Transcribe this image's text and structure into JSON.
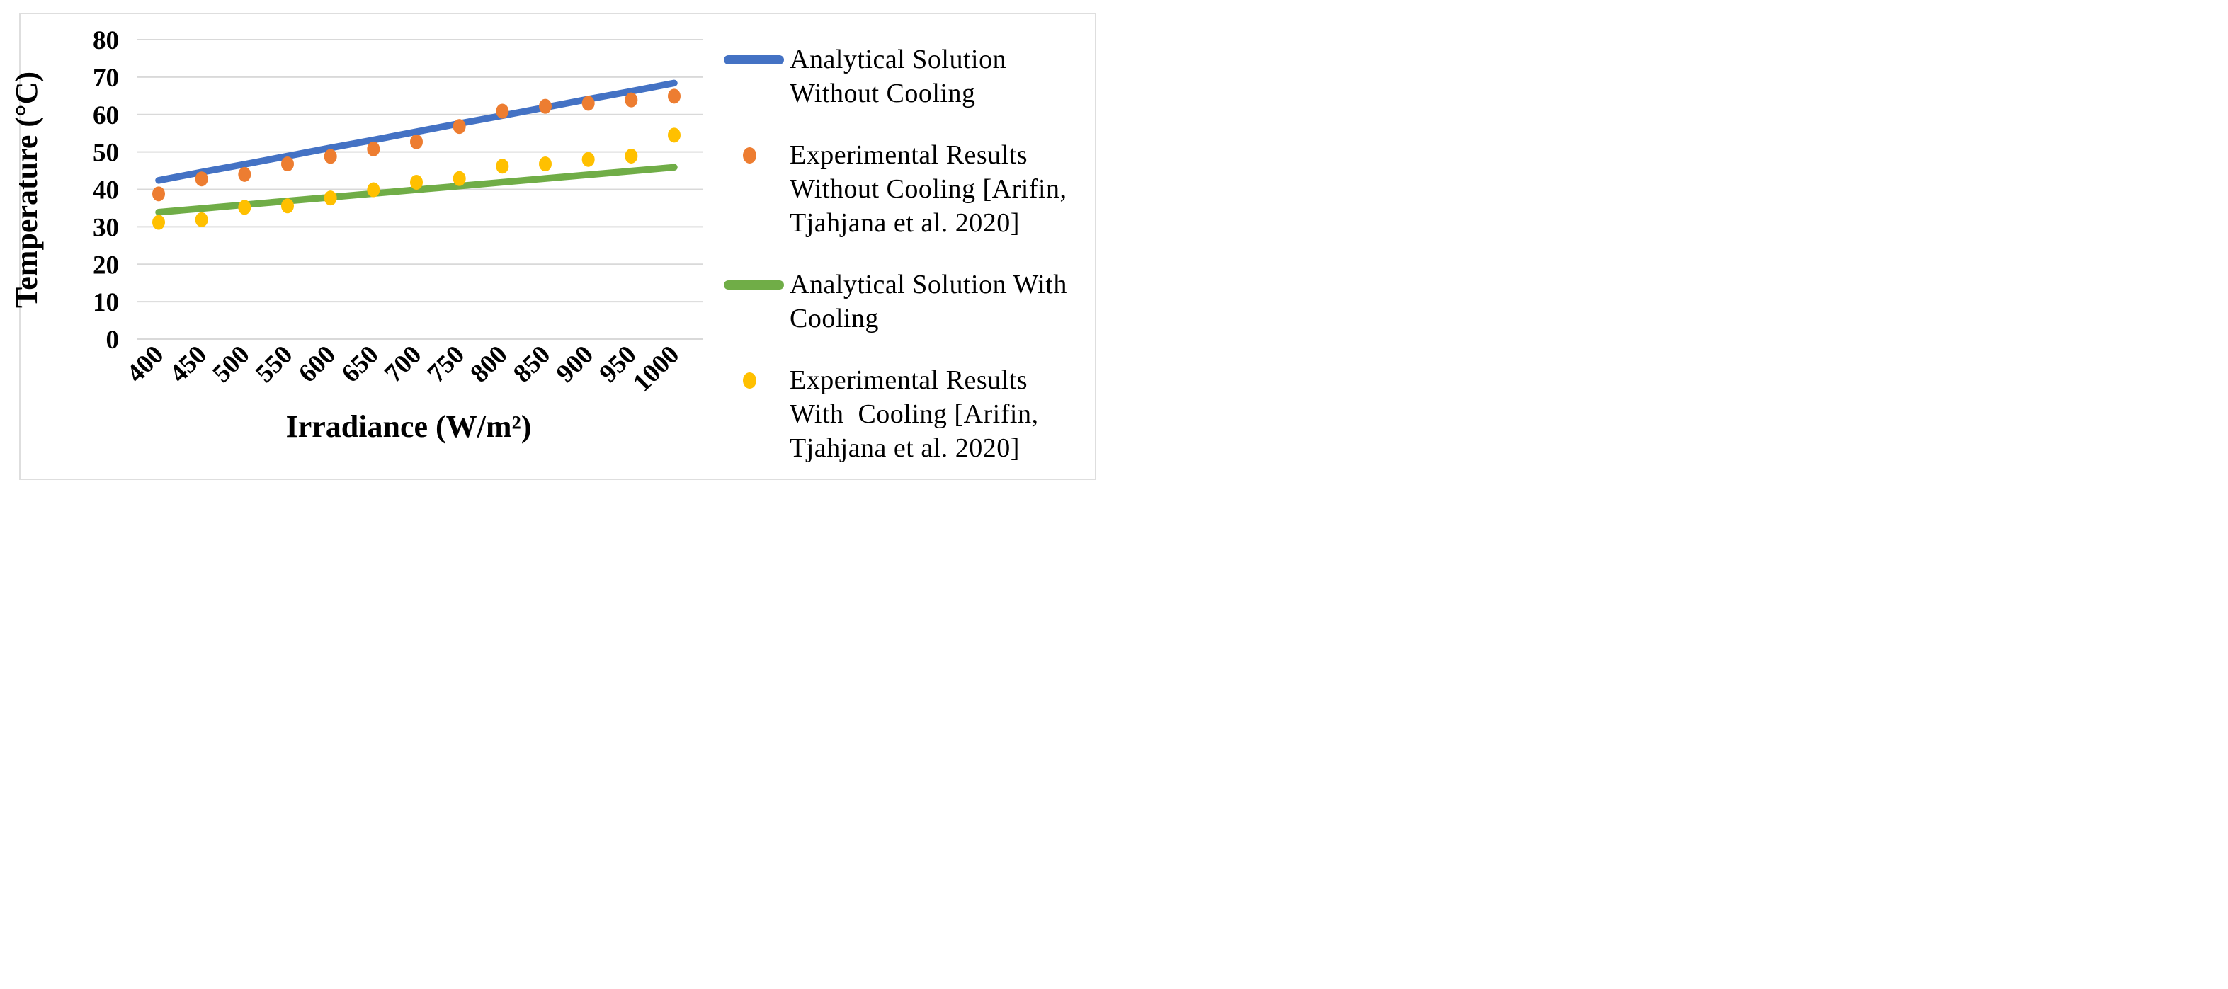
{
  "figure": {
    "background": "#ffffff",
    "border_color": "#dedede"
  },
  "chart_data": {
    "type": "line+scatter",
    "title": "",
    "xlabel": "Irradiance (W/m²)",
    "ylabel": "Temperature (°C)",
    "x": [
      400,
      450,
      500,
      550,
      600,
      650,
      700,
      750,
      800,
      850,
      900,
      950,
      1000
    ],
    "xtick_labels": [
      "400",
      "450",
      "500",
      "550",
      "600",
      "650",
      "700",
      "750",
      "800",
      "850",
      "900",
      "950",
      "1000"
    ],
    "yticks": [
      0,
      10,
      20,
      30,
      40,
      50,
      60,
      70,
      80
    ],
    "ylim": [
      0,
      80
    ],
    "grid": "horizontal",
    "gridline_color": "#d9d9d9",
    "legend_position": "right",
    "series": [
      {
        "name": "Analytical Solution Without Cooling",
        "type": "line",
        "color": "#4472C4",
        "values": [
          42.4,
          44.6,
          46.7,
          48.9,
          51.1,
          53.2,
          55.4,
          57.6,
          59.7,
          61.9,
          64.1,
          66.2,
          68.4
        ]
      },
      {
        "name": "Experimental Results Without Cooling [Arifin, Tjahjana et al. 2020]",
        "type": "scatter",
        "color": "#ED7D31",
        "values": [
          38.8,
          42.8,
          44.0,
          46.8,
          48.8,
          50.8,
          52.7,
          56.8,
          60.9,
          62.2,
          63.0,
          63.9,
          64.9
        ]
      },
      {
        "name": "Analytical Solution With Cooling",
        "type": "line",
        "color": "#70AD47",
        "values": [
          33.9,
          34.9,
          35.9,
          36.9,
          37.9,
          38.9,
          39.9,
          40.9,
          41.9,
          42.9,
          43.9,
          44.9,
          45.9
        ]
      },
      {
        "name": "Experimental Results With Cooling [Arifin, Tjahjana et al. 2020]",
        "type": "scatter",
        "color": "#FFC000",
        "values": [
          31.2,
          31.9,
          35.2,
          35.6,
          37.7,
          39.9,
          41.9,
          42.9,
          46.2,
          46.8,
          48.0,
          48.9,
          54.5
        ]
      }
    ]
  },
  "legend": {
    "items": [
      {
        "swatch": "line",
        "color": "#4472C4",
        "label": "Analytical Solution\nWithout Cooling"
      },
      {
        "swatch": "dot",
        "color": "#ED7D31",
        "label": "Experimental Results\nWithout Cooling [Arifin,\nTjahjana et al. 2020]"
      },
      {
        "swatch": "line",
        "color": "#70AD47",
        "label": "Analytical Solution With\nCooling"
      },
      {
        "swatch": "dot",
        "color": "#FFC000",
        "label": "Experimental Results\nWith  Cooling [Arifin,\nTjahjana et al. 2020]"
      }
    ]
  }
}
